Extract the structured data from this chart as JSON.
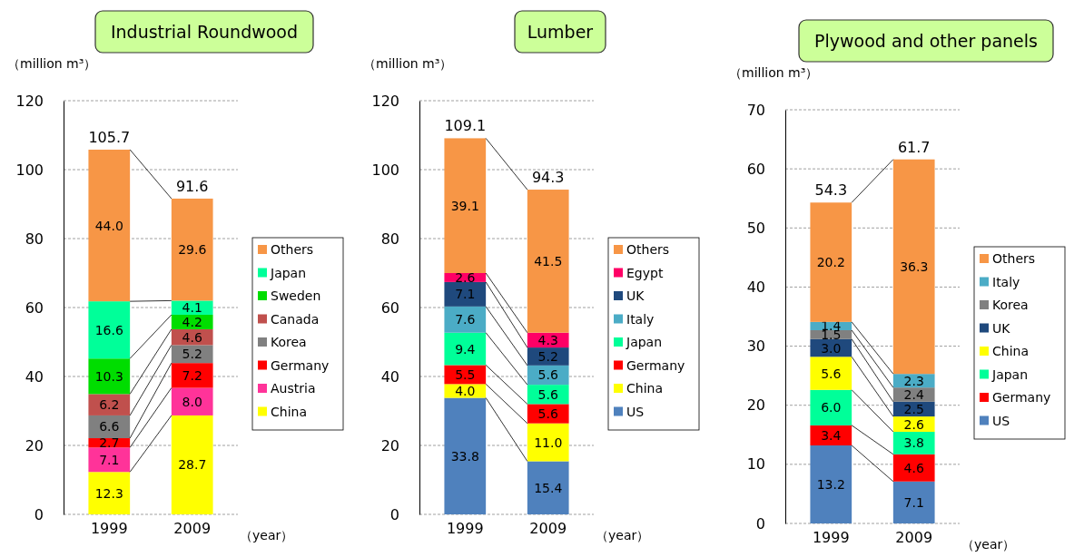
{
  "chart_data": [
    {
      "type": "bar",
      "title": "Industrial Roundwood",
      "ylabel": "（million m³）",
      "xlabel": "（year）",
      "categories": [
        "1999",
        "2009"
      ],
      "stacked": true,
      "grid": "y",
      "legend": "right",
      "ylim": [
        0,
        120
      ],
      "yticks": [
        0,
        20,
        40,
        60,
        80,
        100,
        120
      ],
      "totals": [
        "105.7",
        "91.6"
      ],
      "series": [
        {
          "name": "China",
          "color": "#ffff00",
          "values": [
            12.3,
            28.7
          ],
          "value_labels": [
            "12.3",
            "28.7"
          ]
        },
        {
          "name": "Austria",
          "color": "#ff3399",
          "values": [
            7.1,
            8.0
          ],
          "value_labels": [
            "7.1",
            "8.0"
          ]
        },
        {
          "name": "Germany",
          "color": "#ff0000",
          "values": [
            2.7,
            7.2
          ],
          "value_labels": [
            "2.7",
            "7.2"
          ]
        },
        {
          "name": "Korea",
          "color": "#808080",
          "values": [
            6.6,
            5.2
          ],
          "value_labels": [
            "6.6",
            "5.2"
          ]
        },
        {
          "name": "Canada",
          "color": "#c0504d",
          "values": [
            6.2,
            4.6
          ],
          "value_labels": [
            "6.2",
            "4.6"
          ]
        },
        {
          "name": "Sweden",
          "color": "#00dd00",
          "values": [
            10.3,
            4.2
          ],
          "value_labels": [
            "10.3",
            "4.2"
          ]
        },
        {
          "name": "Japan",
          "color": "#00ff99",
          "values": [
            16.6,
            4.1
          ],
          "value_labels": [
            "16.6",
            "4.1"
          ]
        },
        {
          "name": "Others",
          "color": "#f79646",
          "values": [
            44.0,
            29.6
          ],
          "value_labels": [
            "44.0",
            "29.6"
          ]
        }
      ]
    },
    {
      "type": "bar",
      "title": "Lumber",
      "ylabel": "（million m³）",
      "xlabel": "（year）",
      "categories": [
        "1999",
        "2009"
      ],
      "stacked": true,
      "grid": "y",
      "legend": "right",
      "ylim": [
        0,
        120
      ],
      "yticks": [
        0,
        20,
        40,
        60,
        80,
        100,
        120
      ],
      "totals": [
        "109.1",
        "94.3"
      ],
      "series": [
        {
          "name": "US",
          "color": "#4f81bd",
          "values": [
            33.8,
            15.4
          ],
          "value_labels": [
            "33.8",
            "15.4"
          ]
        },
        {
          "name": "China",
          "color": "#ffff00",
          "values": [
            4.0,
            11.0
          ],
          "value_labels": [
            "4.0",
            "11.0"
          ]
        },
        {
          "name": "Germany",
          "color": "#ff0000",
          "values": [
            5.5,
            5.6
          ],
          "value_labels": [
            "5.5",
            "5.6"
          ]
        },
        {
          "name": "Japan",
          "color": "#00ff99",
          "values": [
            9.4,
            5.6
          ],
          "value_labels": [
            "9.4",
            "5.6"
          ]
        },
        {
          "name": "Italy",
          "color": "#4bacc6",
          "values": [
            7.6,
            5.6
          ],
          "value_labels": [
            "7.6",
            "5.6"
          ]
        },
        {
          "name": "UK",
          "color": "#1f497d",
          "values": [
            7.1,
            5.2
          ],
          "value_labels": [
            "7.1",
            "5.2"
          ]
        },
        {
          "name": "Egypt",
          "color": "#ff0066",
          "values": [
            2.6,
            4.3
          ],
          "value_labels": [
            "2.6",
            "4.3"
          ]
        },
        {
          "name": "Others",
          "color": "#f79646",
          "values": [
            39.1,
            41.5
          ],
          "value_labels": [
            "39.1",
            "41.5"
          ]
        }
      ]
    },
    {
      "type": "bar",
      "title": "Plywood and other panels",
      "ylabel": "（million m³）",
      "xlabel": "（year）",
      "categories": [
        "1999",
        "2009"
      ],
      "stacked": true,
      "grid": "y",
      "legend": "right",
      "ylim": [
        0,
        70
      ],
      "yticks": [
        0,
        10,
        20,
        30,
        40,
        50,
        60,
        70
      ],
      "totals": [
        "54.3",
        "61.7"
      ],
      "series": [
        {
          "name": "US",
          "color": "#4f81bd",
          "values": [
            13.2,
            7.1
          ],
          "value_labels": [
            "13.2",
            "7.1"
          ]
        },
        {
          "name": "Germany",
          "color": "#ff0000",
          "values": [
            3.4,
            4.6
          ],
          "value_labels": [
            "3.4",
            "4.6"
          ]
        },
        {
          "name": "Japan",
          "color": "#00ff99",
          "values": [
            6.0,
            3.8
          ],
          "value_labels": [
            "6.0",
            "3.8"
          ]
        },
        {
          "name": "China",
          "color": "#ffff00",
          "values": [
            5.6,
            2.6
          ],
          "value_labels": [
            "5.6",
            "2.6"
          ]
        },
        {
          "name": "UK",
          "color": "#1f497d",
          "values": [
            3.0,
            2.5
          ],
          "value_labels": [
            "3.0",
            "2.5"
          ]
        },
        {
          "name": "Korea",
          "color": "#808080",
          "values": [
            1.5,
            2.4
          ],
          "value_labels": [
            "1.5",
            "2.4"
          ]
        },
        {
          "name": "Italy",
          "color": "#4bacc6",
          "values": [
            1.4,
            2.3
          ],
          "value_labels": [
            "1.4",
            "2.3"
          ]
        },
        {
          "name": "Others",
          "color": "#f79646",
          "values": [
            20.2,
            36.3
          ],
          "value_labels": [
            "20.2",
            "36.3"
          ]
        }
      ]
    }
  ]
}
